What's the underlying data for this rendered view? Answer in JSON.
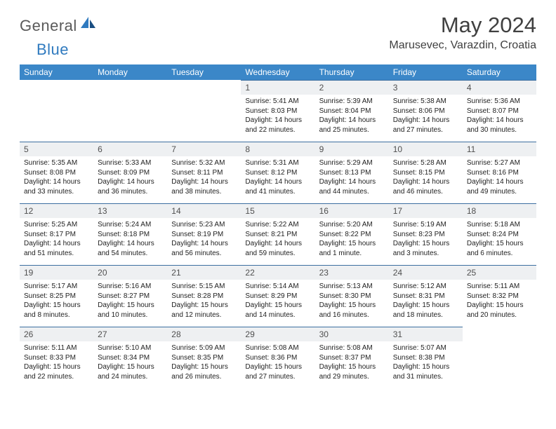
{
  "brand": {
    "part1": "General",
    "part2": "Blue"
  },
  "title": "May 2024",
  "location": "Marusevec, Varazdin, Croatia",
  "colors": {
    "header_bg": "#3b87c8",
    "header_text": "#ffffff",
    "daynum_bg": "#eef0f2",
    "daynum_border": "#3b6ea0",
    "text": "#222222",
    "logo_gray": "#5a5a5a",
    "logo_blue": "#2f7abf"
  },
  "day_headers": [
    "Sunday",
    "Monday",
    "Tuesday",
    "Wednesday",
    "Thursday",
    "Friday",
    "Saturday"
  ],
  "weeks": [
    [
      null,
      null,
      null,
      {
        "n": "1",
        "sr": "5:41 AM",
        "ss": "8:03 PM",
        "dl": "14 hours and 22 minutes."
      },
      {
        "n": "2",
        "sr": "5:39 AM",
        "ss": "8:04 PM",
        "dl": "14 hours and 25 minutes."
      },
      {
        "n": "3",
        "sr": "5:38 AM",
        "ss": "8:06 PM",
        "dl": "14 hours and 27 minutes."
      },
      {
        "n": "4",
        "sr": "5:36 AM",
        "ss": "8:07 PM",
        "dl": "14 hours and 30 minutes."
      }
    ],
    [
      {
        "n": "5",
        "sr": "5:35 AM",
        "ss": "8:08 PM",
        "dl": "14 hours and 33 minutes."
      },
      {
        "n": "6",
        "sr": "5:33 AM",
        "ss": "8:09 PM",
        "dl": "14 hours and 36 minutes."
      },
      {
        "n": "7",
        "sr": "5:32 AM",
        "ss": "8:11 PM",
        "dl": "14 hours and 38 minutes."
      },
      {
        "n": "8",
        "sr": "5:31 AM",
        "ss": "8:12 PM",
        "dl": "14 hours and 41 minutes."
      },
      {
        "n": "9",
        "sr": "5:29 AM",
        "ss": "8:13 PM",
        "dl": "14 hours and 44 minutes."
      },
      {
        "n": "10",
        "sr": "5:28 AM",
        "ss": "8:15 PM",
        "dl": "14 hours and 46 minutes."
      },
      {
        "n": "11",
        "sr": "5:27 AM",
        "ss": "8:16 PM",
        "dl": "14 hours and 49 minutes."
      }
    ],
    [
      {
        "n": "12",
        "sr": "5:25 AM",
        "ss": "8:17 PM",
        "dl": "14 hours and 51 minutes."
      },
      {
        "n": "13",
        "sr": "5:24 AM",
        "ss": "8:18 PM",
        "dl": "14 hours and 54 minutes."
      },
      {
        "n": "14",
        "sr": "5:23 AM",
        "ss": "8:19 PM",
        "dl": "14 hours and 56 minutes."
      },
      {
        "n": "15",
        "sr": "5:22 AM",
        "ss": "8:21 PM",
        "dl": "14 hours and 59 minutes."
      },
      {
        "n": "16",
        "sr": "5:20 AM",
        "ss": "8:22 PM",
        "dl": "15 hours and 1 minute."
      },
      {
        "n": "17",
        "sr": "5:19 AM",
        "ss": "8:23 PM",
        "dl": "15 hours and 3 minutes."
      },
      {
        "n": "18",
        "sr": "5:18 AM",
        "ss": "8:24 PM",
        "dl": "15 hours and 6 minutes."
      }
    ],
    [
      {
        "n": "19",
        "sr": "5:17 AM",
        "ss": "8:25 PM",
        "dl": "15 hours and 8 minutes."
      },
      {
        "n": "20",
        "sr": "5:16 AM",
        "ss": "8:27 PM",
        "dl": "15 hours and 10 minutes."
      },
      {
        "n": "21",
        "sr": "5:15 AM",
        "ss": "8:28 PM",
        "dl": "15 hours and 12 minutes."
      },
      {
        "n": "22",
        "sr": "5:14 AM",
        "ss": "8:29 PM",
        "dl": "15 hours and 14 minutes."
      },
      {
        "n": "23",
        "sr": "5:13 AM",
        "ss": "8:30 PM",
        "dl": "15 hours and 16 minutes."
      },
      {
        "n": "24",
        "sr": "5:12 AM",
        "ss": "8:31 PM",
        "dl": "15 hours and 18 minutes."
      },
      {
        "n": "25",
        "sr": "5:11 AM",
        "ss": "8:32 PM",
        "dl": "15 hours and 20 minutes."
      }
    ],
    [
      {
        "n": "26",
        "sr": "5:11 AM",
        "ss": "8:33 PM",
        "dl": "15 hours and 22 minutes."
      },
      {
        "n": "27",
        "sr": "5:10 AM",
        "ss": "8:34 PM",
        "dl": "15 hours and 24 minutes."
      },
      {
        "n": "28",
        "sr": "5:09 AM",
        "ss": "8:35 PM",
        "dl": "15 hours and 26 minutes."
      },
      {
        "n": "29",
        "sr": "5:08 AM",
        "ss": "8:36 PM",
        "dl": "15 hours and 27 minutes."
      },
      {
        "n": "30",
        "sr": "5:08 AM",
        "ss": "8:37 PM",
        "dl": "15 hours and 29 minutes."
      },
      {
        "n": "31",
        "sr": "5:07 AM",
        "ss": "8:38 PM",
        "dl": "15 hours and 31 minutes."
      },
      null
    ]
  ]
}
